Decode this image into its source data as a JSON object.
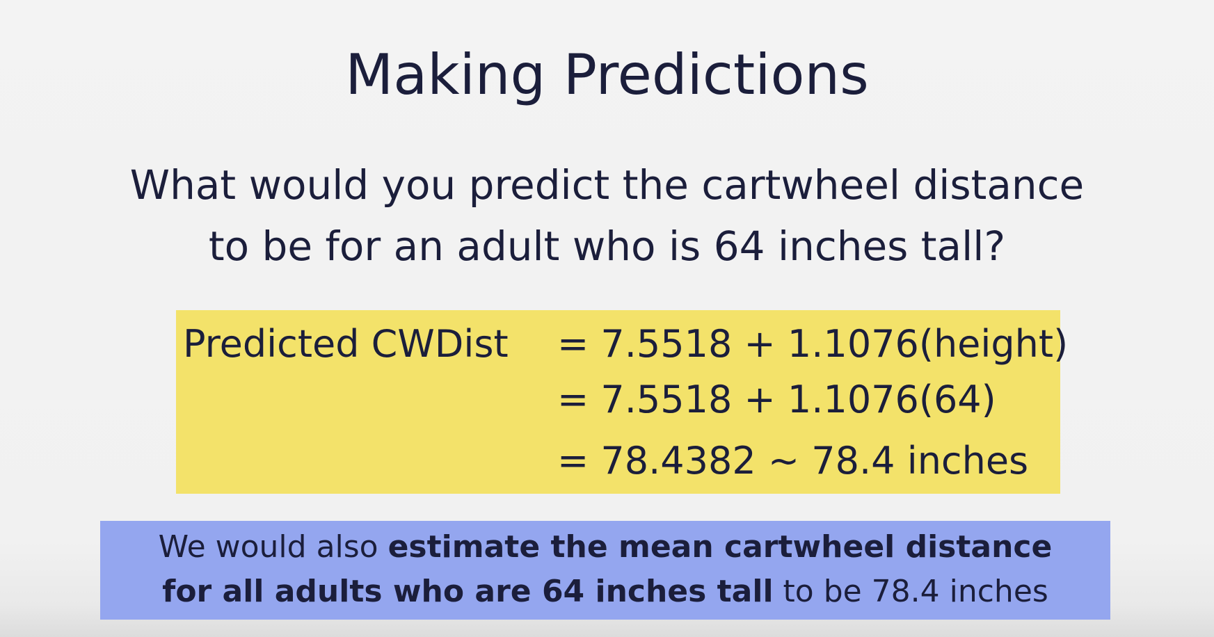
{
  "slide": {
    "title": "Making Predictions",
    "question": [
      "What would you predict the cartwheel distance",
      "to be for an adult who is 64 inches tall?"
    ],
    "formula": {
      "label": "Predicted CWDist",
      "lines": [
        "= 7.5518 + 1.1076(height)",
        "= 7.5518 + 1.1076(64)",
        "= 78.4382 ~ 78.4 inches"
      ]
    },
    "note": {
      "line1_plain": "We would also ",
      "line1_bold": "estimate the mean cartwheel distance",
      "line2_bold": "for all adults who are 64 inches tall",
      "line2_plain": " to be 78.4 inches"
    }
  },
  "colors": {
    "background": "#f2f2f2",
    "formula_highlight": "#f3e26a",
    "note_highlight": "#94a6ef",
    "text": "#1b1e3b"
  }
}
